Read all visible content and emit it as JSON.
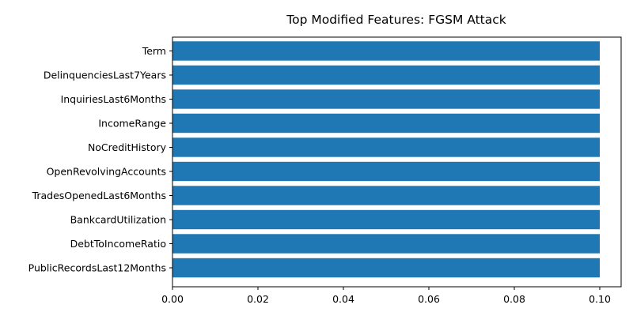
{
  "chart_data": {
    "type": "bar",
    "orientation": "horizontal",
    "title": "Top Modified Features: FGSM Attack",
    "xlabel": "",
    "ylabel": "",
    "categories": [
      "Term",
      "DelinquenciesLast7Years",
      "InquiriesLast6Months",
      "IncomeRange",
      "NoCreditHistory",
      "OpenRevolvingAccounts",
      "TradesOpenedLast6Months",
      "BankcardUtilization",
      "DebtToIncomeRatio",
      "PublicRecordsLast12Months"
    ],
    "values": [
      0.1,
      0.1,
      0.1,
      0.1,
      0.1,
      0.1,
      0.1,
      0.1,
      0.1,
      0.1
    ],
    "xlim": [
      0,
      0.105
    ],
    "xticks": [
      "0.00",
      "0.02",
      "0.04",
      "0.06",
      "0.08",
      "0.10"
    ],
    "bar_color": "#1f77b4",
    "grid": false,
    "legend": "none"
  }
}
